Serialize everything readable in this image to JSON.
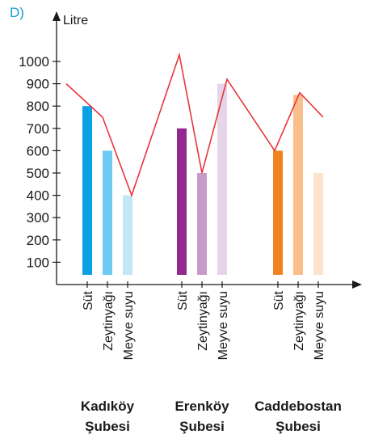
{
  "panel_letter": "D)",
  "chart_data": {
    "type": "bar",
    "ylabel": "Litre",
    "xlabel": "",
    "ylim": [
      0,
      1000
    ],
    "yticks": [
      100,
      200,
      300,
      400,
      500,
      600,
      700,
      800,
      900,
      1000
    ],
    "grid": false,
    "groups": [
      {
        "name_lines": [
          "Kadıköy",
          "Şubesi"
        ],
        "bars": [
          {
            "label": "Süt",
            "value": 800,
            "color": "#0aa0e4"
          },
          {
            "label": "Zeytinyağı",
            "value": 600,
            "color": "#6dcbf3"
          },
          {
            "label": "Meyve suyu",
            "value": 400,
            "color": "#c4e7f8"
          }
        ]
      },
      {
        "name_lines": [
          "Erenköy",
          "Şubesi"
        ],
        "bars": [
          {
            "label": "Süt",
            "value": 700,
            "color": "#93288f"
          },
          {
            "label": "Zeytinyağı",
            "value": 500,
            "color": "#c69bc9"
          },
          {
            "label": "Meyve suyu",
            "value": 900,
            "color": "#e6d4e8"
          }
        ]
      },
      {
        "name_lines": [
          "Caddebostan",
          "Şubesi"
        ],
        "bars": [
          {
            "label": "Süt",
            "value": 600,
            "color": "#f08320"
          },
          {
            "label": "Zeytinyağı",
            "value": 850,
            "color": "#fbbf8c"
          },
          {
            "label": "Meyve suyu",
            "value": 500,
            "color": "#fde3cc"
          }
        ]
      }
    ],
    "overlay_line": {
      "color": "#e8353b",
      "description_free": true,
      "points": [
        900,
        750,
        400,
        1030,
        500,
        920,
        600,
        860,
        750
      ]
    }
  }
}
